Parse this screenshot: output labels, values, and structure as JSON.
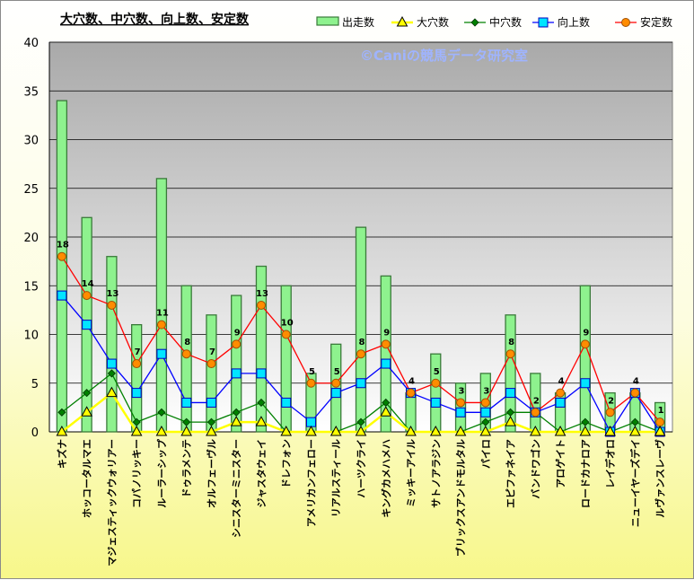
{
  "chart_data": {
    "type": "bar",
    "title": "大穴数、中穴数、向上数、安定数",
    "watermark": "©Caniの競馬データ研究室",
    "categories": [
      "キズナ",
      "ホッコータルマエ",
      "マジェスティックウォリアー",
      "コパノリッキー",
      "ルーラーシップ",
      "ドゥラメンテ",
      "オルフェーヴル",
      "シニスターミニスター",
      "ジャスタウェイ",
      "ドレフォン",
      "アメリカンフェロー",
      "リアルスティール",
      "ハーツクライ",
      "キングカメハメハ",
      "ミッキーアイル",
      "サトノアラジン",
      "ブリックスアンドモルタル",
      "パイロ",
      "エピファネイア",
      "バンドワゴン",
      "アロゲイト",
      "ロードカナロア",
      "レイデオロ",
      "ニューイヤーズデイ",
      "ルヴァンスレーヴ"
    ],
    "ylim": [
      0,
      40
    ],
    "yticks": [
      0,
      5,
      10,
      15,
      20,
      25,
      30,
      35,
      40
    ],
    "grid": true,
    "legend_position": "top-right",
    "series": [
      {
        "name": "出走数",
        "kind": "bar",
        "color": "#8ef28e",
        "border": "#3a7a3a",
        "values": [
          34,
          22,
          18,
          11,
          26,
          15,
          12,
          14,
          17,
          15,
          6,
          9,
          21,
          16,
          4,
          8,
          5,
          6,
          12,
          6,
          4,
          15,
          4,
          4,
          3
        ]
      },
      {
        "name": "大穴数",
        "kind": "line",
        "marker": "triangle",
        "color": "#ffff00",
        "values": [
          0,
          2,
          4,
          0,
          0,
          0,
          0,
          1,
          1,
          0,
          0,
          0,
          0,
          2,
          0,
          0,
          0,
          0,
          1,
          0,
          0,
          0,
          0,
          0,
          0
        ]
      },
      {
        "name": "中穴数",
        "kind": "line",
        "marker": "diamond",
        "color": "#008000",
        "values": [
          2,
          4,
          6,
          1,
          2,
          1,
          1,
          2,
          3,
          0,
          0,
          0,
          1,
          3,
          0,
          0,
          0,
          1,
          2,
          2,
          0,
          1,
          0,
          1,
          0
        ]
      },
      {
        "name": "向上数",
        "kind": "line",
        "marker": "square",
        "color": "#0000ff",
        "values": [
          14,
          11,
          7,
          4,
          8,
          3,
          3,
          6,
          6,
          3,
          1,
          4,
          5,
          7,
          4,
          3,
          2,
          2,
          4,
          2,
          3,
          5,
          0,
          4,
          0
        ]
      },
      {
        "name": "安定数",
        "kind": "line",
        "marker": "circle",
        "color": "#ff0000",
        "values": [
          18,
          14,
          13,
          7,
          11,
          8,
          7,
          9,
          13,
          10,
          5,
          5,
          8,
          9,
          4,
          5,
          3,
          3,
          8,
          2,
          4,
          9,
          2,
          4,
          1
        ]
      }
    ],
    "data_labels": [
      18,
      14,
      13,
      7,
      11,
      8,
      7,
      9,
      13,
      10,
      5,
      5,
      8,
      9,
      4,
      5,
      3,
      3,
      8,
      2,
      4,
      9,
      2,
      4,
      1
    ]
  }
}
